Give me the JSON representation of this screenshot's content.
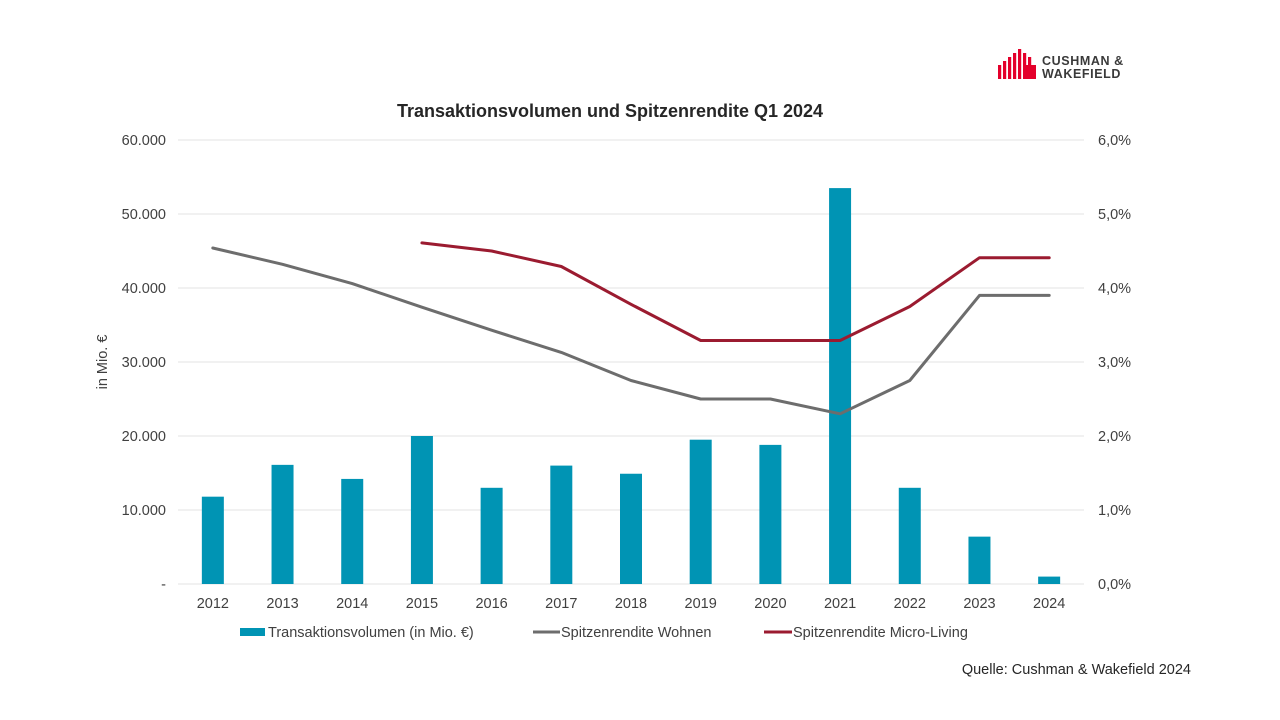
{
  "colors": {
    "bar": "#0094b4",
    "yield_residential": "#6d6d6d",
    "yield_micro_living": "#9b1b30",
    "grid": "#e3e3e3",
    "brand_red": "#e4002b"
  },
  "brand": {
    "line1": "CUSHMAN &",
    "line2": "WAKEFIELD"
  },
  "source": "Quelle:  Cushman  & Wakefield 2024",
  "chart_data": {
    "type": "bar",
    "title": "Transaktionsvolumen und Spitzenrendite Q1 2024",
    "ylabel": "in Mio. €",
    "categories": [
      "2012",
      "2013",
      "2014",
      "2015",
      "2016",
      "2017",
      "2018",
      "2019",
      "2020",
      "2021",
      "2022",
      "2023",
      "2024"
    ],
    "ylim": [
      0,
      60000
    ],
    "y2lim": [
      0,
      6.0
    ],
    "yticks": [
      {
        "value": 0,
        "label": "-"
      },
      {
        "value": 10000,
        "label": "10.000"
      },
      {
        "value": 20000,
        "label": "20.000"
      },
      {
        "value": 30000,
        "label": "30.000"
      },
      {
        "value": 40000,
        "label": "40.000"
      },
      {
        "value": 50000,
        "label": "50.000"
      },
      {
        "value": 60000,
        "label": "60.000"
      }
    ],
    "y2ticks": [
      {
        "value": 0,
        "label": "0,0%"
      },
      {
        "value": 1,
        "label": "1,0%"
      },
      {
        "value": 2,
        "label": "2,0%"
      },
      {
        "value": 3,
        "label": "3,0%"
      },
      {
        "value": 4,
        "label": "4,0%"
      },
      {
        "value": 5,
        "label": "5,0%"
      },
      {
        "value": 6,
        "label": "6,0%"
      }
    ],
    "series": [
      {
        "name": "Transaktionsvolumen  (in Mio. €)",
        "type": "bar",
        "axis": "left",
        "values": [
          11800,
          16100,
          14200,
          20000,
          13000,
          16000,
          14900,
          19500,
          18800,
          53500,
          13000,
          6400,
          1000
        ]
      },
      {
        "name": "Spitzenrendite Wohnen",
        "type": "line",
        "axis": "right",
        "values": [
          4.54,
          4.32,
          4.06,
          3.74,
          3.43,
          3.13,
          2.75,
          2.5,
          2.5,
          2.3,
          2.75,
          3.9,
          3.9
        ]
      },
      {
        "name": "Spitzenrendite Micro-Living",
        "type": "line",
        "axis": "right",
        "values": [
          null,
          null,
          null,
          4.61,
          4.5,
          4.29,
          3.78,
          3.29,
          3.29,
          3.29,
          3.75,
          4.41,
          4.41
        ]
      }
    ],
    "legend_position": "bottom"
  }
}
